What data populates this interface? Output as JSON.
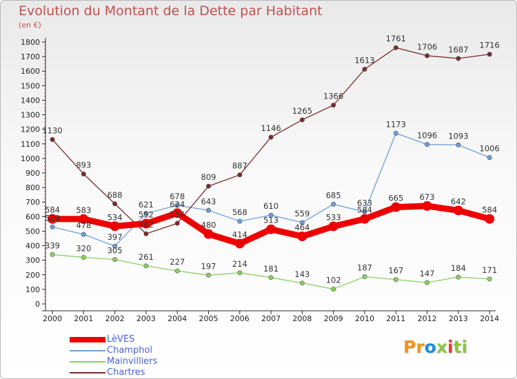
{
  "header": {
    "title": "Evolution du Montant de la Dette par Habitant",
    "unit": "(en €)"
  },
  "logo": {
    "text": "Proxiti",
    "colors": [
      "#f0941e",
      "#f0941e",
      "#1e8fd8",
      "#8cc63e",
      "#e83a3a",
      "#8cc63e",
      "#8cc63e"
    ]
  },
  "chart_data": {
    "type": "line",
    "categories": [
      "2000",
      "2001",
      "2002",
      "2003",
      "2004",
      "2005",
      "2006",
      "2007",
      "2008",
      "2009",
      "2010",
      "2011",
      "2012",
      "2013",
      "2014"
    ],
    "ylim": [
      0,
      1800
    ],
    "yticks": [
      0,
      100,
      200,
      300,
      400,
      500,
      600,
      700,
      800,
      900,
      1000,
      1100,
      1200,
      1300,
      1400,
      1500,
      1600,
      1700,
      1800
    ],
    "grid": false,
    "legend_position": "bottom-left",
    "series": [
      {
        "name": "LèVES",
        "color": "#ee0000",
        "emphasis": true,
        "values": [
          584,
          583,
          534,
          552,
          624,
          480,
          414,
          513,
          464,
          533,
          584,
          665,
          673,
          642,
          584
        ],
        "labels": [
          "584",
          "583",
          "534",
          "552",
          "624",
          "480",
          "414",
          "513",
          "464",
          "533",
          "584",
          "665",
          "673",
          "642",
          "584"
        ]
      },
      {
        "name": "Champhol",
        "color": "#6aa0d8",
        "values": [
          529,
          478,
          397,
          621,
          678,
          643,
          568,
          610,
          559,
          685,
          633,
          1173,
          1096,
          1093,
          1006
        ],
        "labels": [
          "529",
          "478",
          "397",
          "621",
          "678",
          "643",
          "568",
          "610",
          "559",
          "685",
          "633",
          "1173",
          "1096",
          "1093",
          "1006"
        ]
      },
      {
        "name": "Mainvilliers",
        "color": "#8ad060",
        "values": [
          339,
          320,
          305,
          261,
          227,
          197,
          214,
          181,
          143,
          102,
          187,
          167,
          147,
          184,
          171
        ],
        "labels": [
          "339",
          "320",
          "305",
          "261",
          "227",
          "197",
          "214",
          "181",
          "143",
          "102",
          "187",
          "167",
          "147",
          "184",
          "171"
        ]
      },
      {
        "name": "Chartres",
        "color": "#7a2a2a",
        "values": [
          1130,
          893,
          688,
          482,
          554,
          809,
          887,
          1146,
          1265,
          1366,
          1613,
          1761,
          1706,
          1687,
          1716
        ],
        "labels": [
          "1130",
          "893",
          "688",
          "482",
          "554",
          "809",
          "887",
          "1146",
          "1265",
          "1366",
          "1613",
          "1761",
          "1706",
          "1687",
          "1716"
        ]
      }
    ]
  }
}
